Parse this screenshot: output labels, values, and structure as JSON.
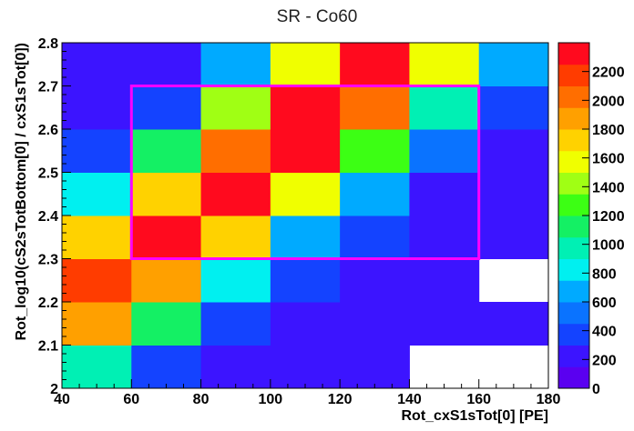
{
  "chart_data": {
    "type": "heatmap",
    "title": "SR - Co60",
    "xlabel": "Rot_cxS1sTot[0]  [PE]",
    "ylabel": "Rot_log10(cS2sTotBottom[0] / cxS1sTot[0])",
    "xlim": [
      40,
      180
    ],
    "ylim": [
      2.0,
      2.8
    ],
    "x_ticks": [
      "40",
      "60",
      "80",
      "100",
      "120",
      "140",
      "160",
      "180"
    ],
    "y_ticks": [
      "2",
      "2.1",
      "2.2",
      "2.3",
      "2.4",
      "2.5",
      "2.6",
      "2.7",
      "2.8"
    ],
    "x_edges": [
      40,
      60,
      80,
      100,
      120,
      140,
      160,
      180
    ],
    "y_edges": [
      2.0,
      2.1,
      2.2,
      2.3,
      2.4,
      2.5,
      2.6,
      2.7,
      2.8
    ],
    "z_rows_bottom_to_top": [
      [
        950,
        400,
        150,
        150,
        150,
        null,
        null
      ],
      [
        1850,
        1050,
        300,
        150,
        150,
        150,
        150
      ],
      [
        2200,
        1850,
        800,
        300,
        150,
        150,
        null
      ],
      [
        1750,
        2300,
        1750,
        650,
        300,
        150,
        150
      ],
      [
        800,
        1750,
        2300,
        1550,
        650,
        150,
        150
      ],
      [
        300,
        1150,
        2050,
        2250,
        1300,
        450,
        150
      ],
      [
        150,
        400,
        1350,
        2250,
        1950,
        900,
        350
      ],
      [
        150,
        150,
        650,
        1550,
        2250,
        1550,
        650
      ]
    ],
    "zlim": [
      0,
      2400
    ],
    "colorbar_ticks": [
      "0",
      "200",
      "400",
      "600",
      "800",
      "1000",
      "1200",
      "1400",
      "1600",
      "1800",
      "2000",
      "2200"
    ],
    "annotation_box": {
      "x": [
        60,
        160
      ],
      "y": [
        2.3,
        2.7
      ],
      "color": "#ff00ff"
    },
    "grid": false,
    "colors": {
      "palette": [
        "#5a00f0",
        "#3c14ff",
        "#1443ff",
        "#0a73ff",
        "#00aaff",
        "#00f0f0",
        "#00f0b4",
        "#14f064",
        "#3cff14",
        "#a0ff14",
        "#f0ff00",
        "#ffd200",
        "#ffa000",
        "#ff6e00",
        "#ff3c00",
        "#ff0a1e"
      ],
      "annotation": "#ff00ff"
    }
  }
}
